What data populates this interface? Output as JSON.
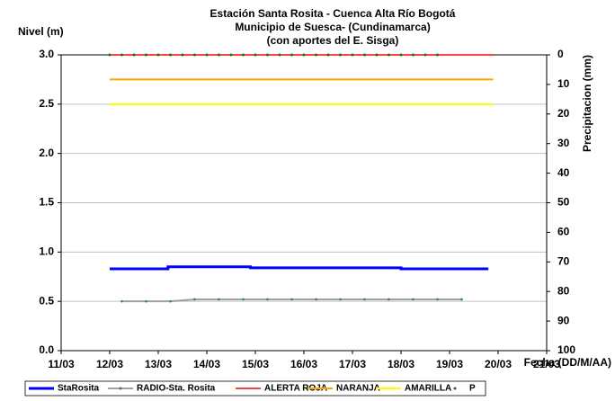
{
  "chart_data": {
    "type": "line",
    "title": [
      "Estación Santa Rosita - Cuenca Alta Río Bogotá",
      "Municipio de Suesca- (Cundinamarca)",
      "(con aportes del  E. Sisga)"
    ],
    "ylabel": "Nivel (m)",
    "y2label": "Precipitacion (mm)",
    "xlabel": "Fecha (DD/M/AA)",
    "xlim": [
      11,
      21
    ],
    "xticks": [
      {
        "value": 11,
        "label": "11/03"
      },
      {
        "value": 12,
        "label": "12/03"
      },
      {
        "value": 13,
        "label": "13/03"
      },
      {
        "value": 14,
        "label": "14/03"
      },
      {
        "value": 15,
        "label": "15/03"
      },
      {
        "value": 16,
        "label": "16/03"
      },
      {
        "value": 17,
        "label": "17/03"
      },
      {
        "value": 18,
        "label": "18/03"
      },
      {
        "value": 19,
        "label": "19/03"
      },
      {
        "value": 20,
        "label": "20/03"
      },
      {
        "value": 21,
        "label": "21/03"
      }
    ],
    "ylim": [
      0,
      3
    ],
    "yticks": [
      {
        "value": 0,
        "label": "0.0"
      },
      {
        "value": 0.5,
        "label": "0.5"
      },
      {
        "value": 1,
        "label": "1.0"
      },
      {
        "value": 1.5,
        "label": "1.5"
      },
      {
        "value": 2,
        "label": "2.0"
      },
      {
        "value": 2.5,
        "label": "2.5"
      },
      {
        "value": 3,
        "label": "3.0"
      }
    ],
    "y2lim": [
      100,
      0
    ],
    "y2ticks": [
      0,
      10,
      20,
      30,
      40,
      50,
      60,
      70,
      80,
      90,
      100
    ],
    "grid": true,
    "series": [
      {
        "name": "StaRosita",
        "color": "#0000ff",
        "width": 3,
        "x": [
          12,
          13.2,
          13.2,
          14.9,
          14.9,
          18,
          18,
          19.8
        ],
        "values": [
          0.83,
          0.83,
          0.85,
          0.85,
          0.84,
          0.84,
          0.83,
          0.83
        ]
      },
      {
        "name": "RADIO-Sta. Rosita",
        "color": "#a0a0a0",
        "width": 2,
        "markers": true,
        "x": [
          12.25,
          12.75,
          13.25,
          13.75,
          14.25,
          14.75,
          15.25,
          15.75,
          16.25,
          16.75,
          17.25,
          17.75,
          18.25,
          18.75,
          19.25
        ],
        "values": [
          0.5,
          0.5,
          0.5,
          0.52,
          0.52,
          0.52,
          0.52,
          0.52,
          0.52,
          0.52,
          0.52,
          0.52,
          0.52,
          0.52,
          0.52
        ]
      },
      {
        "name": "ALERTA ROJA",
        "color": "#ff0000",
        "width": 1.5,
        "x": [
          12,
          19.9
        ],
        "values": [
          3,
          3
        ]
      },
      {
        "name": "NARANJA",
        "color": "#ffa500",
        "width": 2,
        "x": [
          12,
          19.9
        ],
        "values": [
          2.75,
          2.75
        ]
      },
      {
        "name": "AMARILLA",
        "color": "#ffff00",
        "width": 2,
        "x": [
          12,
          19.9
        ],
        "values": [
          2.5,
          2.5
        ]
      },
      {
        "name": "P",
        "color": "#008000",
        "axis": "y2",
        "dots": true,
        "x": [
          12,
          12.25,
          12.5,
          12.75,
          13,
          13.25,
          13.5,
          13.75,
          14,
          14.25,
          14.5,
          14.75,
          15,
          15.25,
          15.5,
          15.75,
          16,
          16.25,
          16.5,
          16.75,
          17,
          17.25,
          17.5,
          17.75,
          18,
          18.25,
          18.5,
          18.75
        ],
        "values": [
          0,
          0,
          0,
          0,
          0,
          0,
          0,
          0,
          0,
          0,
          0,
          0,
          0,
          0,
          0,
          0,
          0,
          0,
          0,
          0,
          0,
          0,
          0,
          0,
          0,
          0,
          0,
          0
        ]
      }
    ]
  }
}
